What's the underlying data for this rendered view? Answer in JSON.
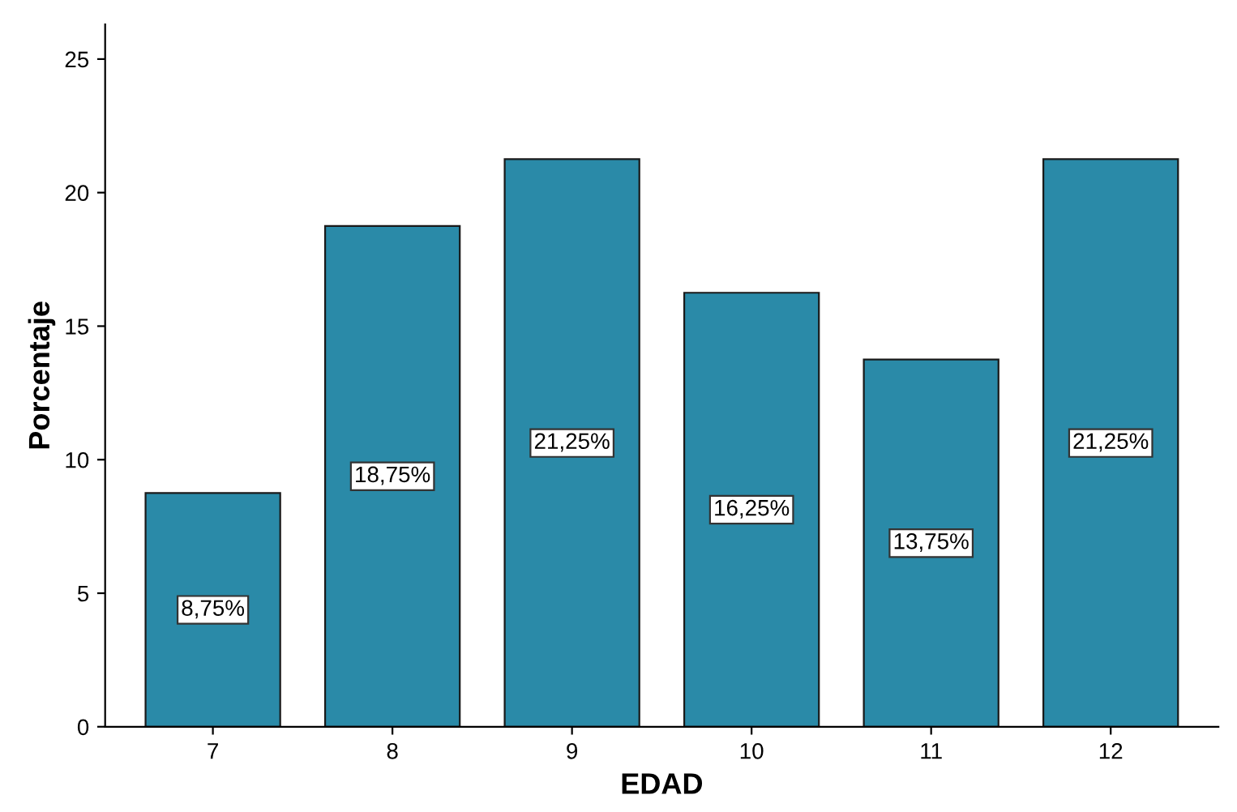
{
  "chart_data": {
    "type": "bar",
    "xlabel": "EDAD",
    "ylabel": "Porcentaje",
    "categories": [
      "7",
      "8",
      "9",
      "10",
      "11",
      "12"
    ],
    "values": [
      8.75,
      18.75,
      21.25,
      16.25,
      13.75,
      21.25
    ],
    "value_labels": [
      "8,75%",
      "18,75%",
      "21,25%",
      "16,25%",
      "13,75%",
      "21,25%"
    ],
    "color": "#2a8aa8",
    "ylim": [
      0,
      26.3
    ],
    "yticks": [
      0,
      5,
      10,
      15,
      20,
      25
    ],
    "grid": false,
    "legend": false
  }
}
